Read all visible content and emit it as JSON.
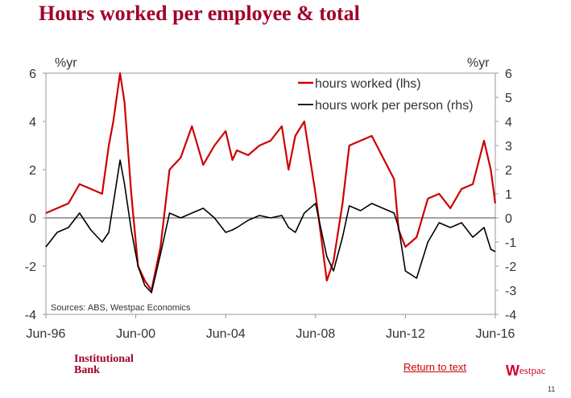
{
  "title": "Hours worked per employee & total",
  "colors": {
    "title": "#a0002a",
    "hours_worked": "#cc0000",
    "hours_per_person": "#000000",
    "link": "#cc0000",
    "brand": "#d5002b"
  },
  "footer": {
    "brand_line1": "Institutional",
    "brand_line2": "Bank",
    "return_link": "Return to text",
    "logo_text": "estpac",
    "logo_mark": "W",
    "page_number": "11"
  },
  "chart_data": {
    "type": "line",
    "source": "Sources: ABS, Westpac Economics",
    "y_left": {
      "unit": "%yr",
      "range": [
        -4,
        6
      ],
      "ticks": [
        "-4",
        "-2",
        "0",
        "2",
        "4",
        "6"
      ]
    },
    "y_right": {
      "unit": "%yr",
      "range": [
        -4,
        6
      ],
      "ticks": [
        "-4",
        "-3",
        "-2",
        "-1",
        "0",
        "1",
        "2",
        "3",
        "4",
        "5",
        "6"
      ]
    },
    "x_ticks": [
      "Jun-96",
      "Jun-00",
      "Jun-04",
      "Jun-08",
      "Jun-12",
      "Jun-16"
    ],
    "legend_position": "top-right",
    "series": [
      {
        "name": "hours worked (lhs)",
        "axis": "left",
        "color": "#cc0000",
        "x": [
          1996.5,
          1997.0,
          1997.5,
          1998.0,
          1998.5,
          1999.0,
          1999.3,
          1999.5,
          1999.8,
          2000.0,
          2000.3,
          2000.6,
          2000.9,
          2001.2,
          2001.6,
          2002.0,
          2002.5,
          2003.0,
          2003.5,
          2004.0,
          2004.5,
          2004.8,
          2005.0,
          2005.5,
          2006.0,
          2006.5,
          2007.0,
          2007.3,
          2007.6,
          2008.0,
          2008.5,
          2009.0,
          2009.3,
          2009.7,
          2010.0,
          2010.5,
          2011.0,
          2011.5,
          2012.0,
          2012.2,
          2012.5,
          2013.0,
          2013.5,
          2014.0,
          2014.5,
          2015.0,
          2015.5,
          2016.0,
          2016.3,
          2016.5
        ],
        "y": [
          0.2,
          0.4,
          0.6,
          1.4,
          1.2,
          1.0,
          3.0,
          4.0,
          6.0,
          4.8,
          1.0,
          -2.0,
          -2.6,
          -3.0,
          -1.2,
          2.0,
          2.5,
          3.8,
          2.2,
          3.0,
          3.6,
          2.4,
          2.8,
          2.6,
          3.0,
          3.2,
          3.8,
          2.0,
          3.4,
          4.0,
          1.0,
          -2.6,
          -1.8,
          0.6,
          3.0,
          3.2,
          3.4,
          2.5,
          1.6,
          -0.5,
          -1.2,
          -0.8,
          0.8,
          1.0,
          0.4,
          1.2,
          1.4,
          3.2,
          2.0,
          0.6
        ]
      },
      {
        "name": "hours work per person (rhs)",
        "axis": "right",
        "color": "#000000",
        "x": [
          1996.5,
          1997.0,
          1997.5,
          1998.0,
          1998.5,
          1999.0,
          1999.3,
          1999.5,
          1999.8,
          2000.0,
          2000.3,
          2000.6,
          2000.9,
          2001.2,
          2001.6,
          2002.0,
          2002.5,
          2003.0,
          2003.5,
          2004.0,
          2004.5,
          2004.8,
          2005.0,
          2005.5,
          2006.0,
          2006.5,
          2007.0,
          2007.3,
          2007.6,
          2008.0,
          2008.5,
          2009.0,
          2009.3,
          2009.7,
          2010.0,
          2010.5,
          2011.0,
          2011.5,
          2012.0,
          2012.2,
          2012.5,
          2013.0,
          2013.5,
          2014.0,
          2014.5,
          2015.0,
          2015.5,
          2016.0,
          2016.3,
          2016.5
        ],
        "y": [
          -1.2,
          -0.6,
          -0.4,
          0.2,
          -0.5,
          -1.0,
          -0.6,
          0.6,
          2.4,
          1.4,
          -0.5,
          -2.0,
          -2.8,
          -3.1,
          -1.5,
          0.2,
          0.0,
          0.2,
          0.4,
          0.0,
          -0.6,
          -0.5,
          -0.4,
          -0.1,
          0.1,
          0.0,
          0.1,
          -0.4,
          -0.6,
          0.2,
          0.6,
          -1.6,
          -2.2,
          -0.8,
          0.5,
          0.3,
          0.6,
          0.4,
          0.2,
          -0.4,
          -2.2,
          -2.5,
          -1.0,
          -0.2,
          -0.4,
          -0.2,
          -0.8,
          -0.4,
          -1.3,
          -1.4
        ]
      }
    ]
  }
}
